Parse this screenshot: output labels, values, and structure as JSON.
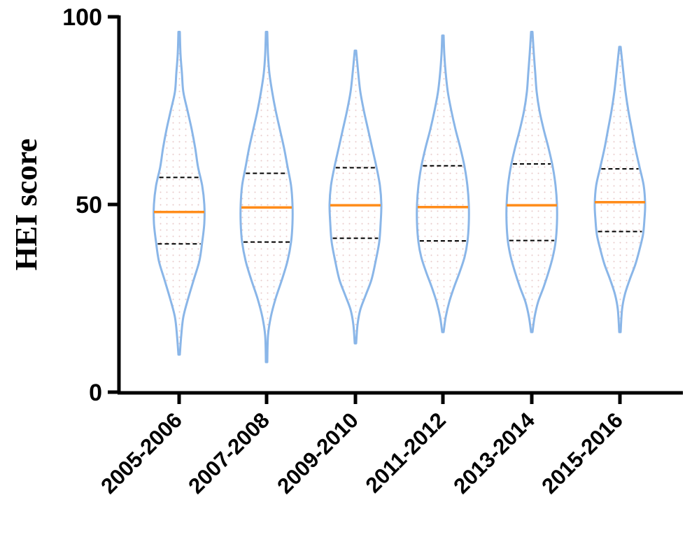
{
  "chart_data": {
    "type": "violin",
    "title": "",
    "xlabel": "",
    "ylabel": "HEI score",
    "ylim": [
      0,
      100
    ],
    "yticks": [
      0,
      50,
      100
    ],
    "categories": [
      "2005-2006",
      "2007-2008",
      "2009-2010",
      "2011-2012",
      "2013-2014",
      "2015-2016"
    ],
    "series": [
      {
        "category": "2005-2006",
        "min": 10,
        "max": 96,
        "q1": 39.5,
        "median": 48,
        "q3": 57.2,
        "profile": [
          [
            10,
            1
          ],
          [
            15,
            3
          ],
          [
            20,
            6
          ],
          [
            25,
            13
          ],
          [
            30,
            21
          ],
          [
            35,
            29
          ],
          [
            40,
            33
          ],
          [
            45,
            36
          ],
          [
            50,
            36
          ],
          [
            55,
            33
          ],
          [
            60,
            27
          ],
          [
            65,
            23
          ],
          [
            70,
            18
          ],
          [
            75,
            12
          ],
          [
            80,
            6
          ],
          [
            85,
            4
          ],
          [
            90,
            2
          ],
          [
            96,
            1
          ]
        ]
      },
      {
        "category": "2007-2008",
        "min": 8,
        "max": 96,
        "q1": 40,
        "median": 49.2,
        "q3": 58.3,
        "profile": [
          [
            8,
            1
          ],
          [
            15,
            2
          ],
          [
            20,
            6
          ],
          [
            25,
            13
          ],
          [
            30,
            22
          ],
          [
            35,
            30
          ],
          [
            40,
            35
          ],
          [
            45,
            37
          ],
          [
            50,
            37
          ],
          [
            55,
            35
          ],
          [
            60,
            30
          ],
          [
            65,
            25
          ],
          [
            70,
            19
          ],
          [
            75,
            13
          ],
          [
            80,
            8
          ],
          [
            85,
            4
          ],
          [
            90,
            2
          ],
          [
            96,
            1
          ]
        ]
      },
      {
        "category": "2009-2010",
        "min": 13,
        "max": 91,
        "q1": 41,
        "median": 49.8,
        "q3": 59.8,
        "profile": [
          [
            13,
            1
          ],
          [
            18,
            3
          ],
          [
            22,
            7
          ],
          [
            26,
            15
          ],
          [
            30,
            23
          ],
          [
            35,
            29
          ],
          [
            40,
            34
          ],
          [
            45,
            36
          ],
          [
            50,
            37
          ],
          [
            55,
            35
          ],
          [
            60,
            30
          ],
          [
            65,
            24
          ],
          [
            70,
            18
          ],
          [
            75,
            12
          ],
          [
            80,
            7
          ],
          [
            85,
            4
          ],
          [
            91,
            1
          ]
        ]
      },
      {
        "category": "2011-2012",
        "min": 16,
        "max": 95,
        "q1": 40.3,
        "median": 49.3,
        "q3": 60.3,
        "profile": [
          [
            16,
            1
          ],
          [
            20,
            4
          ],
          [
            24,
            9
          ],
          [
            28,
            16
          ],
          [
            32,
            24
          ],
          [
            36,
            31
          ],
          [
            40,
            35
          ],
          [
            45,
            37
          ],
          [
            50,
            37
          ],
          [
            55,
            35
          ],
          [
            60,
            31
          ],
          [
            65,
            25
          ],
          [
            70,
            18
          ],
          [
            75,
            12
          ],
          [
            80,
            7
          ],
          [
            85,
            4
          ],
          [
            90,
            2
          ],
          [
            95,
            1
          ]
        ]
      },
      {
        "category": "2013-2014",
        "min": 16,
        "max": 96,
        "q1": 40.4,
        "median": 49.8,
        "q3": 60.8,
        "profile": [
          [
            16,
            1
          ],
          [
            20,
            4
          ],
          [
            24,
            9
          ],
          [
            28,
            17
          ],
          [
            32,
            24
          ],
          [
            36,
            30
          ],
          [
            40,
            34
          ],
          [
            45,
            36
          ],
          [
            50,
            36
          ],
          [
            55,
            34
          ],
          [
            60,
            30
          ],
          [
            65,
            24
          ],
          [
            70,
            17
          ],
          [
            75,
            11
          ],
          [
            80,
            7
          ],
          [
            85,
            5
          ],
          [
            90,
            3
          ],
          [
            96,
            1
          ]
        ]
      },
      {
        "category": "2015-2016",
        "min": 16,
        "max": 92,
        "q1": 42.8,
        "median": 50.6,
        "q3": 59.5,
        "profile": [
          [
            16,
            1
          ],
          [
            22,
            3
          ],
          [
            26,
            7
          ],
          [
            30,
            14
          ],
          [
            34,
            22
          ],
          [
            38,
            28
          ],
          [
            42,
            33
          ],
          [
            46,
            35
          ],
          [
            50,
            36
          ],
          [
            55,
            34
          ],
          [
            60,
            28
          ],
          [
            65,
            22
          ],
          [
            70,
            17
          ],
          [
            75,
            12
          ],
          [
            80,
            8
          ],
          [
            85,
            5
          ],
          [
            92,
            1
          ]
        ]
      }
    ],
    "colors": {
      "violin_outline": "#8ab6e8",
      "median_line": "#ff8c1a",
      "quartile_line": "#000000",
      "axis": "#000000",
      "fill_dots": "#e8c8c8"
    }
  }
}
